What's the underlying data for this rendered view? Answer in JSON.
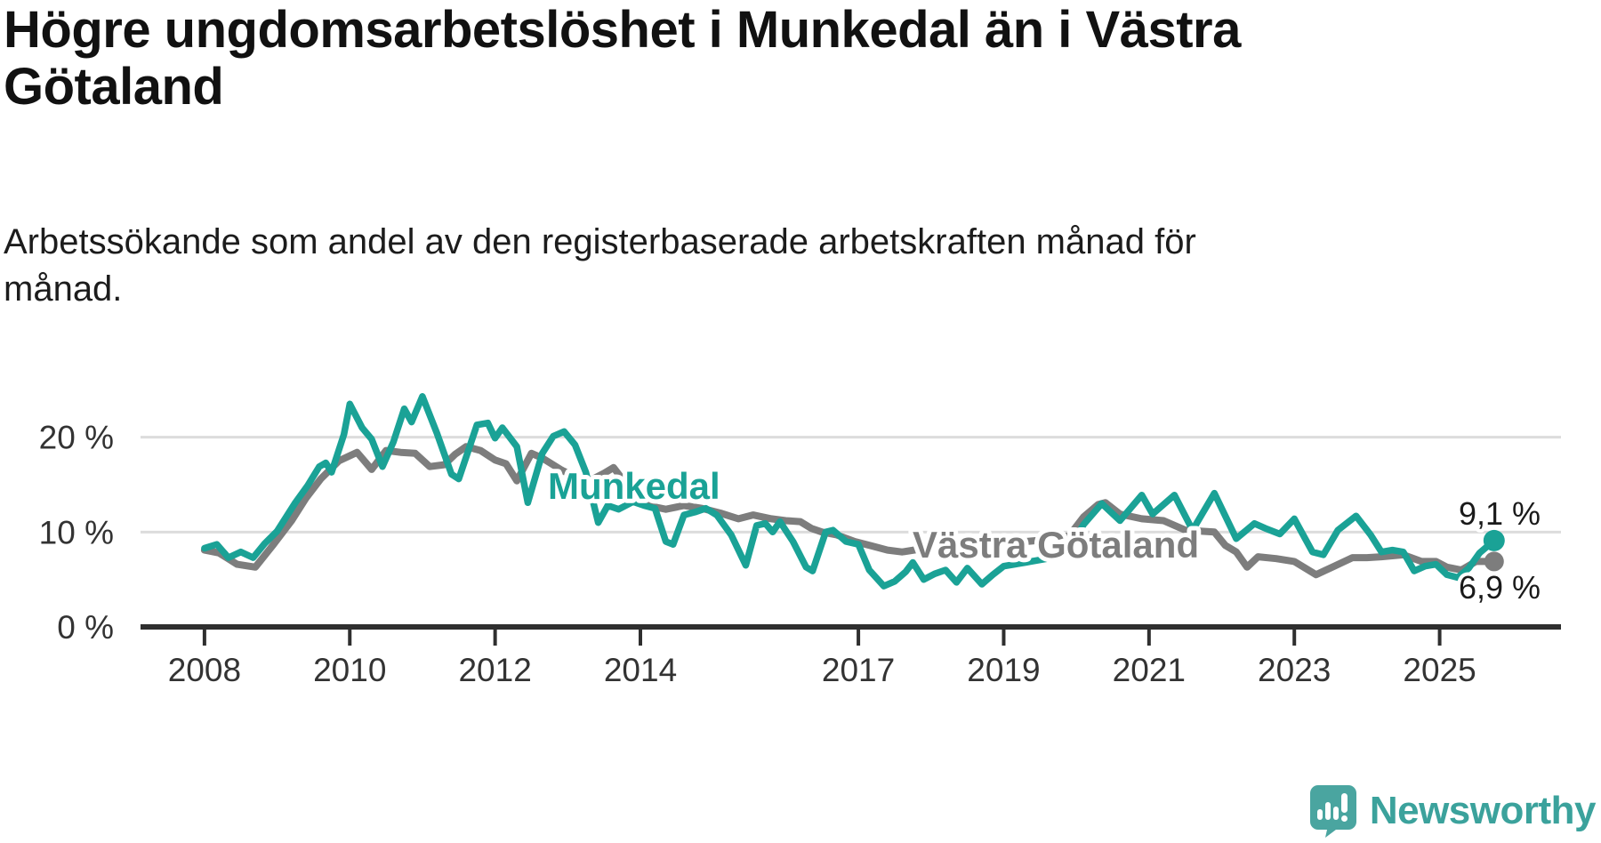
{
  "header": {
    "title_line1": "Högre ungdomsarbetslöshet i Munkedal än i Västra",
    "title_line2": "Götaland",
    "subtitle_line1": "Arbetssökande som andel av den registerbaserade arbetskraften månad för",
    "subtitle_line2": "månad."
  },
  "footer": {
    "brand": "Newsworthy",
    "brand_color": "#3ba29c",
    "logo_icon": "speech-bubble-bar-chart-icon"
  },
  "chart_data": {
    "type": "line",
    "title": "Högre ungdomsarbetslöshet i Munkedal än i Västra Götaland",
    "subtitle": "Arbetssökande som andel av den registerbaserade arbetskraften månad för månad.",
    "xlabel": "",
    "ylabel": "",
    "grid": true,
    "legend_position": "inline-labels",
    "grid_color": "#dcdcdc",
    "axis_color": "#2f2f2f",
    "x_range": [
      2007.12,
      2026.67
    ],
    "y_range": [
      0,
      30
    ],
    "x_ticks": [
      {
        "year": 2008,
        "label": "2008"
      },
      {
        "year": 2010,
        "label": "2010"
      },
      {
        "year": 2012,
        "label": "2012"
      },
      {
        "year": 2014,
        "label": "2014"
      },
      {
        "year": 2017,
        "label": "2017"
      },
      {
        "year": 2019,
        "label": "2019"
      },
      {
        "year": 2021,
        "label": "2021"
      },
      {
        "year": 2023,
        "label": "2023"
      },
      {
        "year": 2025,
        "label": "2025"
      }
    ],
    "y_ticks": [
      {
        "value": 0,
        "label": "0 %"
      },
      {
        "value": 10,
        "label": "10 %"
      },
      {
        "value": 20,
        "label": "20 %"
      }
    ],
    "series": [
      {
        "name": "Munkedal",
        "color": "#1aa296",
        "end_label": "9,1 %",
        "end_value": 9.1,
        "points": [
          [
            2008,
            8.3
          ],
          [
            2008.17,
            8.7
          ],
          [
            2008.33,
            7.3
          ],
          [
            2008.5,
            7.9
          ],
          [
            2008.67,
            7.3
          ],
          [
            2008.83,
            8.8
          ],
          [
            2009,
            10.1
          ],
          [
            2009.25,
            13.1
          ],
          [
            2009.42,
            14.9
          ],
          [
            2009.58,
            16.9
          ],
          [
            2009.67,
            17.3
          ],
          [
            2009.75,
            16.3
          ],
          [
            2009.92,
            20.3
          ],
          [
            2010,
            23.5
          ],
          [
            2010.17,
            21
          ],
          [
            2010.3,
            19.8
          ],
          [
            2010.45,
            16.9
          ],
          [
            2010.6,
            19.5
          ],
          [
            2010.75,
            23
          ],
          [
            2010.85,
            21.6
          ],
          [
            2011,
            24.3
          ],
          [
            2011.2,
            20.4
          ],
          [
            2011.4,
            16.1
          ],
          [
            2011.5,
            15.6
          ],
          [
            2011.65,
            19
          ],
          [
            2011.75,
            21.3
          ],
          [
            2011.9,
            21.5
          ],
          [
            2012,
            19.9
          ],
          [
            2012.1,
            21
          ],
          [
            2012.3,
            19
          ],
          [
            2012.45,
            13.1
          ],
          [
            2012.65,
            18.3
          ],
          [
            2012.8,
            20.1
          ],
          [
            2012.95,
            20.6
          ],
          [
            2013.1,
            19.2
          ],
          [
            2013.25,
            16.3
          ],
          [
            2013.42,
            11
          ],
          [
            2013.55,
            12.8
          ],
          [
            2013.7,
            12.4
          ],
          [
            2013.9,
            13.2
          ],
          [
            2014.05,
            12.8
          ],
          [
            2014.2,
            12.5
          ],
          [
            2014.35,
            9
          ],
          [
            2014.45,
            8.7
          ],
          [
            2014.6,
            11.8
          ],
          [
            2014.75,
            12.1
          ],
          [
            2014.9,
            12.5
          ],
          [
            2015.05,
            11.8
          ],
          [
            2015.25,
            9.7
          ],
          [
            2015.45,
            6.5
          ],
          [
            2015.6,
            10.7
          ],
          [
            2015.72,
            10.9
          ],
          [
            2015.82,
            10
          ],
          [
            2015.92,
            11.1
          ],
          [
            2016.1,
            9
          ],
          [
            2016.28,
            6.3
          ],
          [
            2016.37,
            5.9
          ],
          [
            2016.55,
            10
          ],
          [
            2016.65,
            10.2
          ],
          [
            2016.83,
            9
          ],
          [
            2017,
            8.7
          ],
          [
            2017.15,
            6
          ],
          [
            2017.35,
            4.3
          ],
          [
            2017.5,
            4.8
          ],
          [
            2017.65,
            5.8
          ],
          [
            2017.75,
            6.8
          ],
          [
            2017.9,
            5
          ],
          [
            2018.05,
            5.6
          ],
          [
            2018.2,
            6
          ],
          [
            2018.35,
            4.7
          ],
          [
            2018.5,
            6.2
          ],
          [
            2018.7,
            4.5
          ],
          [
            2018.85,
            5.5
          ],
          [
            2019,
            6.4
          ],
          [
            2019.3,
            6.8
          ],
          [
            2019.6,
            7.2
          ],
          [
            2019.9,
            8.2
          ],
          [
            2020.1,
            10.8
          ],
          [
            2020.35,
            13
          ],
          [
            2020.6,
            11.2
          ],
          [
            2020.9,
            13.9
          ],
          [
            2021.05,
            11.9
          ],
          [
            2021.35,
            13.9
          ],
          [
            2021.6,
            10.2
          ],
          [
            2021.9,
            14.1
          ],
          [
            2022.2,
            9.3
          ],
          [
            2022.45,
            10.9
          ],
          [
            2022.6,
            10.4
          ],
          [
            2022.8,
            9.8
          ],
          [
            2023,
            11.4
          ],
          [
            2023.25,
            7.9
          ],
          [
            2023.4,
            7.6
          ],
          [
            2023.6,
            10.2
          ],
          [
            2023.85,
            11.7
          ],
          [
            2024.05,
            9.7
          ],
          [
            2024.2,
            7.9
          ],
          [
            2024.35,
            8.1
          ],
          [
            2024.5,
            7.9
          ],
          [
            2024.65,
            5.9
          ],
          [
            2024.8,
            6.4
          ],
          [
            2024.95,
            6.6
          ],
          [
            2025.1,
            5.5
          ],
          [
            2025.25,
            5.2
          ],
          [
            2025.4,
            6.2
          ],
          [
            2025.55,
            7.8
          ],
          [
            2025.75,
            9.1
          ]
        ]
      },
      {
        "name": "Västra Götaland",
        "color": "#7d7d7d",
        "end_label": "6,9 %",
        "end_value": 6.9,
        "points": [
          [
            2008,
            8.1
          ],
          [
            2008.2,
            7.8
          ],
          [
            2008.45,
            6.6
          ],
          [
            2008.7,
            6.3
          ],
          [
            2008.95,
            8.7
          ],
          [
            2009.2,
            11.2
          ],
          [
            2009.4,
            13.6
          ],
          [
            2009.6,
            15.6
          ],
          [
            2009.85,
            17.5
          ],
          [
            2010.1,
            18.4
          ],
          [
            2010.3,
            16.6
          ],
          [
            2010.5,
            18.6
          ],
          [
            2010.7,
            18.4
          ],
          [
            2010.9,
            18.3
          ],
          [
            2011.1,
            16.9
          ],
          [
            2011.3,
            17.1
          ],
          [
            2011.45,
            18.2
          ],
          [
            2011.6,
            19
          ],
          [
            2011.8,
            18.6
          ],
          [
            2012,
            17.6
          ],
          [
            2012.15,
            17.2
          ],
          [
            2012.3,
            15.4
          ],
          [
            2012.5,
            18.3
          ],
          [
            2012.65,
            17.8
          ],
          [
            2012.9,
            16.6
          ],
          [
            2013.1,
            15.8
          ],
          [
            2013.3,
            15.4
          ],
          [
            2013.5,
            16.2
          ],
          [
            2013.63,
            16.8
          ],
          [
            2013.85,
            14.6
          ],
          [
            2014.1,
            12.8
          ],
          [
            2014.35,
            12.4
          ],
          [
            2014.6,
            12.8
          ],
          [
            2014.85,
            12.5
          ],
          [
            2015.1,
            12
          ],
          [
            2015.35,
            11.4
          ],
          [
            2015.55,
            11.8
          ],
          [
            2015.8,
            11.4
          ],
          [
            2016,
            11.2
          ],
          [
            2016.2,
            11.1
          ],
          [
            2016.35,
            10.4
          ],
          [
            2016.5,
            10
          ],
          [
            2016.7,
            9.7
          ],
          [
            2016.95,
            9
          ],
          [
            2017.2,
            8.5
          ],
          [
            2017.4,
            8.1
          ],
          [
            2017.6,
            7.9
          ],
          [
            2017.85,
            8.2
          ],
          [
            2018.1,
            8.5
          ],
          [
            2018.4,
            8.7
          ],
          [
            2018.7,
            8.8
          ],
          [
            2019,
            9
          ],
          [
            2019.3,
            9
          ],
          [
            2019.6,
            9.2
          ],
          [
            2019.9,
            9.6
          ],
          [
            2020.1,
            11.6
          ],
          [
            2020.3,
            12.9
          ],
          [
            2020.4,
            13.1
          ],
          [
            2020.6,
            11.9
          ],
          [
            2020.9,
            11.4
          ],
          [
            2021.2,
            11.2
          ],
          [
            2021.5,
            10.2
          ],
          [
            2021.7,
            10.1
          ],
          [
            2021.9,
            10
          ],
          [
            2022.05,
            8.6
          ],
          [
            2022.2,
            7.9
          ],
          [
            2022.35,
            6.3
          ],
          [
            2022.5,
            7.4
          ],
          [
            2022.75,
            7.2
          ],
          [
            2023,
            6.9
          ],
          [
            2023.3,
            5.5
          ],
          [
            2023.55,
            6.4
          ],
          [
            2023.8,
            7.3
          ],
          [
            2024,
            7.3
          ],
          [
            2024.2,
            7.4
          ],
          [
            2024.5,
            7.6
          ],
          [
            2024.75,
            6.9
          ],
          [
            2024.95,
            6.9
          ],
          [
            2025.1,
            6.3
          ],
          [
            2025.3,
            6
          ],
          [
            2025.5,
            6.9
          ],
          [
            2025.75,
            6.9
          ]
        ]
      }
    ]
  }
}
